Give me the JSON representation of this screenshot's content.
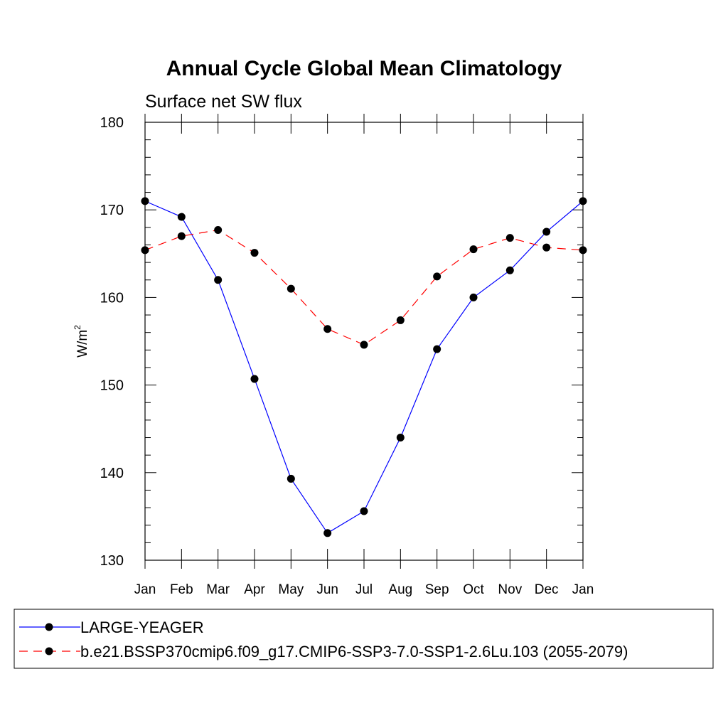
{
  "chart_data": {
    "type": "line",
    "title": "Annual Cycle Global Mean Climatology",
    "subtitle": "Surface net SW flux",
    "ylabel": "W/m",
    "ylabel_superscript": "2",
    "ylim": [
      130,
      180
    ],
    "yticks": [
      "130",
      "140",
      "150",
      "160",
      "170",
      "180"
    ],
    "categories": [
      "Jan",
      "Feb",
      "Mar",
      "Apr",
      "May",
      "Jun",
      "Jul",
      "Aug",
      "Sep",
      "Oct",
      "Nov",
      "Dec",
      "Jan"
    ],
    "grid": false,
    "legend_position": "bottom",
    "series": [
      {
        "name": "LARGE-YEAGER",
        "color": "#0000ff",
        "dash": "solid",
        "marker": "filled-circle",
        "values": [
          171.0,
          169.2,
          162.0,
          150.7,
          139.3,
          133.1,
          135.6,
          144.0,
          154.1,
          160.0,
          163.1,
          167.5,
          171.0
        ]
      },
      {
        "name": "b.e21.BSSP370cmip6.f09_g17.CMIP6-SSP3-7.0-SSP1-2.6Lu.103 (2055-2079)",
        "color": "#ff0000",
        "dash": "dashed",
        "marker": "filled-circle",
        "values": [
          165.4,
          167.0,
          167.7,
          165.1,
          161.0,
          156.4,
          154.6,
          157.4,
          162.4,
          165.5,
          166.8,
          165.7,
          165.4
        ]
      }
    ]
  }
}
